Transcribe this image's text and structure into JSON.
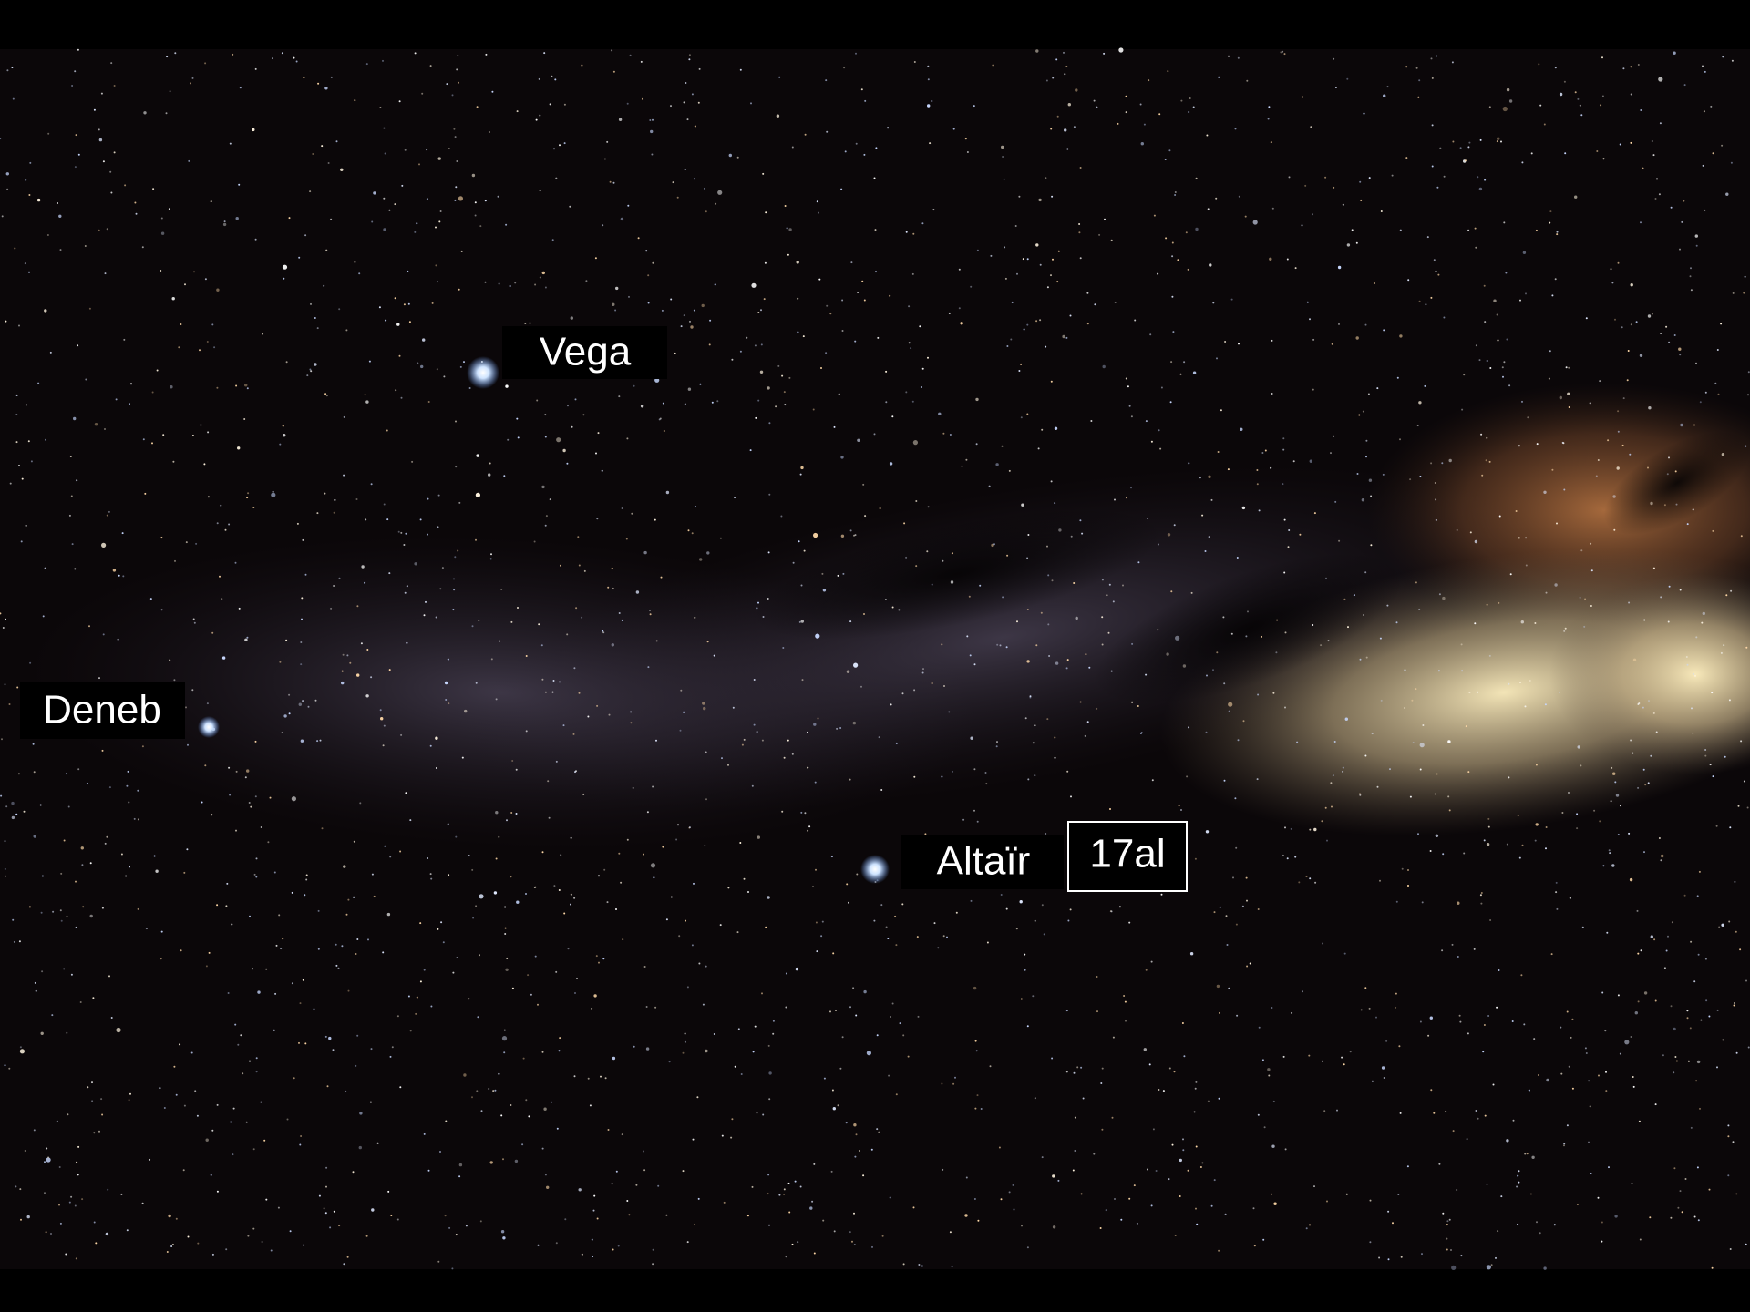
{
  "labels": {
    "vega": "Vega",
    "deneb": "Deneb",
    "altair": "Altaïr",
    "distance": "17al"
  }
}
